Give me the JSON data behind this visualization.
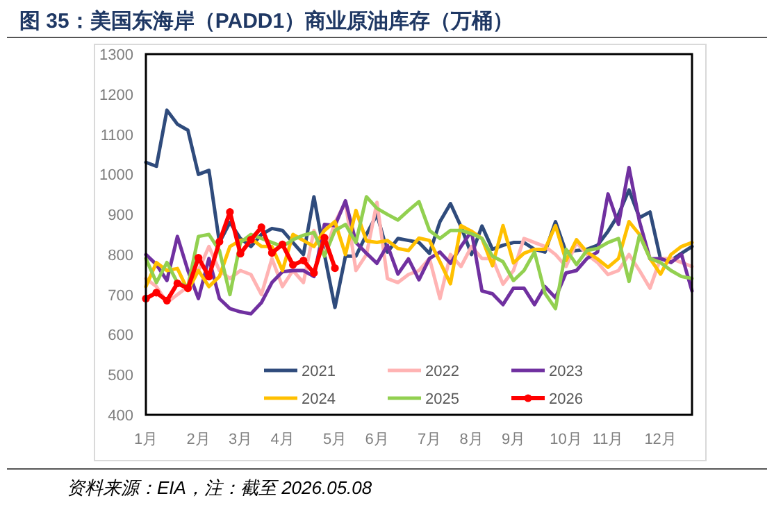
{
  "chart_data": {
    "type": "line",
    "title": "图 35：美国东海岸（PADD1）商业原油库存（万桶）",
    "annotations": [
      "资料来源：EIA，注：截至 2026.05.08"
    ],
    "categories": [
      "1月",
      null,
      null,
      null,
      null,
      "2月",
      null,
      null,
      null,
      "3月",
      null,
      null,
      null,
      "4月",
      null,
      null,
      null,
      null,
      "5月",
      null,
      null,
      null,
      "6月",
      null,
      null,
      null,
      null,
      "7月",
      null,
      null,
      null,
      "8月",
      null,
      null,
      null,
      "9月",
      null,
      null,
      null,
      null,
      "10月",
      null,
      null,
      null,
      "11月",
      null,
      null,
      null,
      null,
      "12月",
      null,
      null,
      null
    ],
    "ylim": [
      400,
      1300
    ],
    "yticks": [
      400,
      500,
      600,
      700,
      800,
      900,
      1000,
      1100,
      1200,
      1300
    ],
    "legend": "bottom",
    "series": [
      {
        "name": "2021",
        "color": "#2f4b7c",
        "values": [
          1030,
          1020,
          1160,
          1125,
          1110,
          1000,
          1010,
          830,
          880,
          840,
          820,
          850,
          865,
          860,
          830,
          800,
          944,
          800,
          668,
          796,
          796,
          850,
          900,
          806,
          840,
          835,
          830,
          803,
          882,
          927,
          870,
          800,
          871,
          813,
          823,
          830,
          830,
          813,
          806,
          882,
          806,
          810,
          813,
          823,
          858,
          900,
          961,
          892,
          906,
          789,
          785,
          803,
          820
        ]
      },
      {
        "name": "2022",
        "color": "#ffb3b3",
        "values": [
          740,
          720,
          680,
          700,
          720,
          760,
          820,
          760,
          740,
          760,
          750,
          700,
          790,
          720,
          760,
          730,
          860,
          800,
          880,
          930,
          760,
          800,
          930,
          740,
          730,
          750,
          760,
          790,
          690,
          800,
          770,
          820,
          790,
          790,
          726,
          760,
          840,
          830,
          820,
          800,
          770,
          830,
          800,
          780,
          750,
          760,
          800,
          760,
          716,
          790,
          790,
          780,
          770
        ]
      },
      {
        "name": "2023",
        "color": "#7030a0",
        "values": [
          800,
          775,
          735,
          845,
          760,
          690,
          790,
          690,
          665,
          657,
          652,
          680,
          730,
          757,
          760,
          760,
          745,
          875,
          872,
          934,
          830,
          803,
          778,
          823,
          751,
          789,
          737,
          790,
          806,
          778,
          820,
          858,
          709,
          702,
          675,
          716,
          716,
          675,
          720,
          692,
          754,
          760,
          790,
          806,
          951,
          875,
          1017,
          882,
          789,
          790,
          780,
          800,
          709
        ]
      },
      {
        "name": "2024",
        "color": "#ffc000",
        "values": [
          720,
          780,
          760,
          765,
          710,
          760,
          720,
          745,
          820,
          835,
          840,
          820,
          820,
          760,
          850,
          835,
          820,
          860,
          882,
          800,
          910,
          834,
          830,
          835,
          815,
          810,
          841,
          835,
          782,
          727,
          872,
          858,
          840,
          772,
          872,
          779,
          803,
          813,
          813,
          872,
          785,
          837,
          806,
          789,
          768,
          790,
          882,
          850,
          790,
          751,
          800,
          820,
          830
        ]
      },
      {
        "name": "2025",
        "color": "#92d050",
        "values": [
          790,
          730,
          780,
          730,
          720,
          845,
          850,
          810,
          700,
          830,
          850,
          840,
          830,
          820,
          837,
          848,
          855,
          796,
          860,
          875,
          830,
          944,
          915,
          900,
          886,
          910,
          932,
          860,
          840,
          860,
          860,
          852,
          840,
          796,
          782,
          735,
          760,
          806,
          703,
          665,
          813,
          775,
          810,
          815,
          830,
          840,
          733,
          848,
          790,
          780,
          760,
          745,
          740
        ]
      },
      {
        "name": "2026",
        "color": "#ff0000",
        "marker": "circle",
        "values": [
          690,
          705,
          685,
          728,
          716,
          792,
          745,
          832,
          906,
          802,
          837,
          868,
          804,
          825,
          774,
          785,
          754,
          842,
          766,
          null,
          null,
          null,
          null,
          null,
          null,
          null,
          null,
          null,
          null,
          null,
          null,
          null,
          null,
          null,
          null,
          null,
          null,
          null,
          null,
          null,
          null,
          null,
          null,
          null,
          null,
          null,
          null,
          null,
          null,
          null,
          null,
          null,
          null
        ]
      }
    ]
  }
}
